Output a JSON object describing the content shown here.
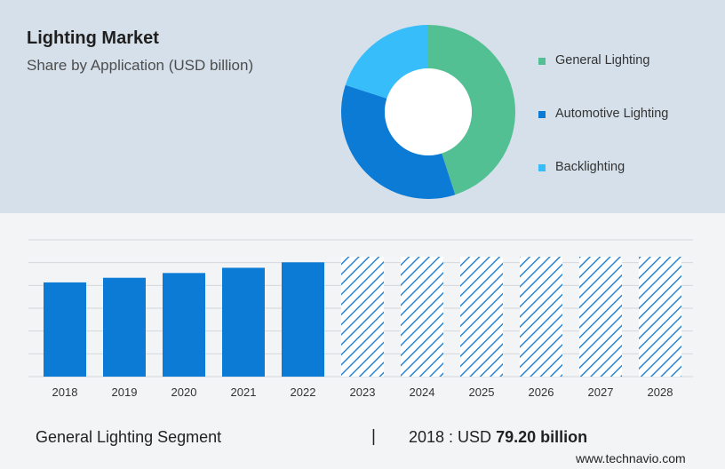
{
  "header": {
    "title": "Lighting Market",
    "subtitle": "Share by Application (USD billion)"
  },
  "chart_data": [
    {
      "type": "pie",
      "style": "donut",
      "slices": [
        {
          "name": "General Lighting",
          "value": 45,
          "color": "#53c093"
        },
        {
          "name": "Automotive Lighting",
          "value": 35,
          "color": "#0c7bd6"
        },
        {
          "name": "Backlighting",
          "value": 20,
          "color": "#37bdf9"
        }
      ],
      "legend": "right"
    },
    {
      "type": "bar",
      "categories": [
        "2018",
        "2019",
        "2020",
        "2021",
        "2022",
        "2023",
        "2024",
        "2025",
        "2026",
        "2027",
        "2028"
      ],
      "values": [
        79.2,
        83.1,
        87.1,
        91.5,
        96.1,
        100.8,
        100.8,
        100.8,
        100.8,
        100.8,
        100.8
      ],
      "forecast_from": "2023",
      "ylim": [
        0,
        115
      ],
      "grid": true,
      "color": "#0c7bd6",
      "forecast_color": "#2a84d2"
    }
  ],
  "footer": {
    "segment": "General Lighting Segment",
    "separator": "|",
    "year_label": "2018 : USD",
    "value": "79.20 billion",
    "website": "www.technavio.com"
  }
}
